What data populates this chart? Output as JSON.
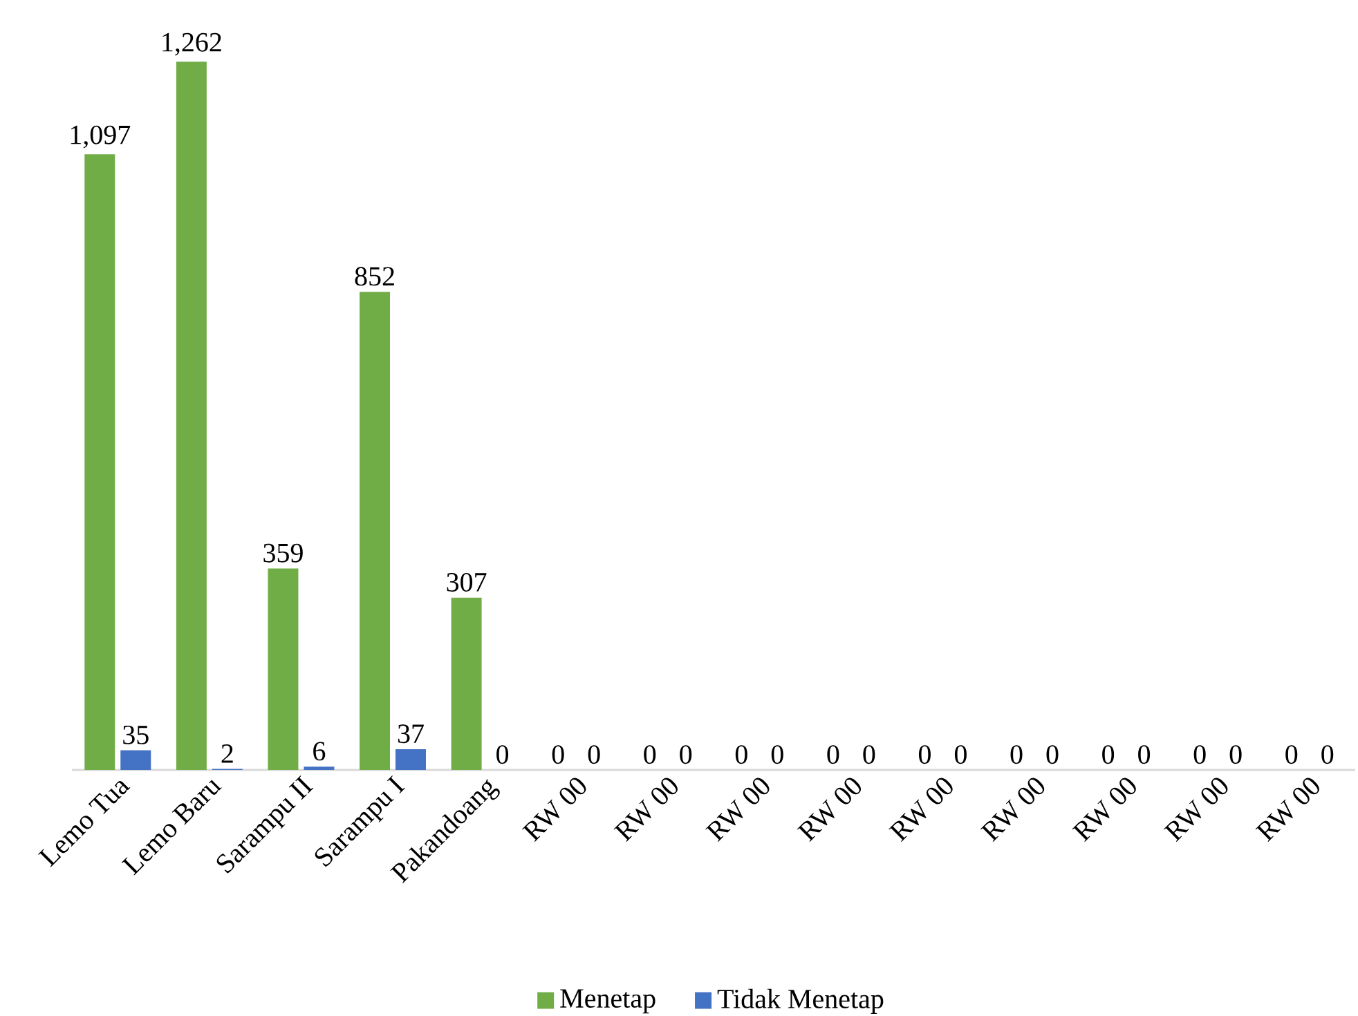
{
  "chart_data": {
    "type": "bar",
    "categories": [
      "Lemo Tua",
      "Lemo Baru",
      "Sarampu II",
      "Sarampu I",
      "Pakandoang",
      "RW 00",
      "RW 00",
      "RW 00",
      "RW 00",
      "RW 00",
      "RW 00",
      "RW 00",
      "RW 00",
      "RW 00"
    ],
    "series": [
      {
        "name": "Menetap",
        "color": "#70ad47",
        "values": [
          1097,
          1262,
          359,
          852,
          307,
          0,
          0,
          0,
          0,
          0,
          0,
          0,
          0,
          0
        ],
        "value_labels": [
          "1,097",
          "1,262",
          "359",
          "852",
          "307",
          "0",
          "0",
          "0",
          "0",
          "0",
          "0",
          "0",
          "0",
          "0"
        ]
      },
      {
        "name": "Tidak Menetap",
        "color": "#4472c4",
        "values": [
          35,
          2,
          6,
          37,
          0,
          0,
          0,
          0,
          0,
          0,
          0,
          0,
          0,
          0
        ],
        "value_labels": [
          "35",
          "2",
          "6",
          "37",
          "0",
          "0",
          "0",
          "0",
          "0",
          "0",
          "0",
          "0",
          "0",
          "0"
        ]
      }
    ],
    "legend": "bottom"
  }
}
